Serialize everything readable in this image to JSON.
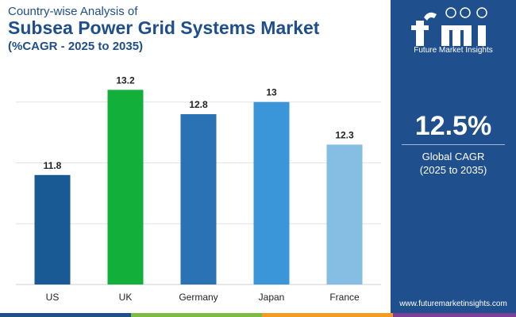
{
  "header": {
    "subtitle": "Country-wise Analysis of",
    "title": "Subsea Power Grid Systems Market",
    "range": "(%CAGR - 2025 to 2035)"
  },
  "sidebar": {
    "brand_name": "Future Market Insights",
    "cagr_value": "12.5%",
    "cagr_label": "Global CAGR",
    "cagr_range": "(2025 to 2035)",
    "website": "www.futuremarketinsights.com"
  },
  "chart_data": {
    "type": "bar",
    "title": "Subsea Power Grid Systems Market",
    "xlabel": "",
    "ylabel": "",
    "categories": [
      "US",
      "UK",
      "Germany",
      "Japan",
      "France"
    ],
    "values": [
      11.8,
      13.2,
      12.8,
      13,
      12.3
    ],
    "value_labels": [
      "11.8",
      "13.2",
      "12.8",
      "13",
      "12.3"
    ],
    "colors": [
      "#1a5a94",
      "#12b03a",
      "#2a72b4",
      "#3a96d8",
      "#86bde3"
    ],
    "ylim": [
      10.0,
      13.4
    ],
    "grid": true
  },
  "footer": {
    "colors": [
      "#1f4f8c",
      "#7dbb42",
      "#f39a1f",
      "#7b3f98"
    ]
  }
}
